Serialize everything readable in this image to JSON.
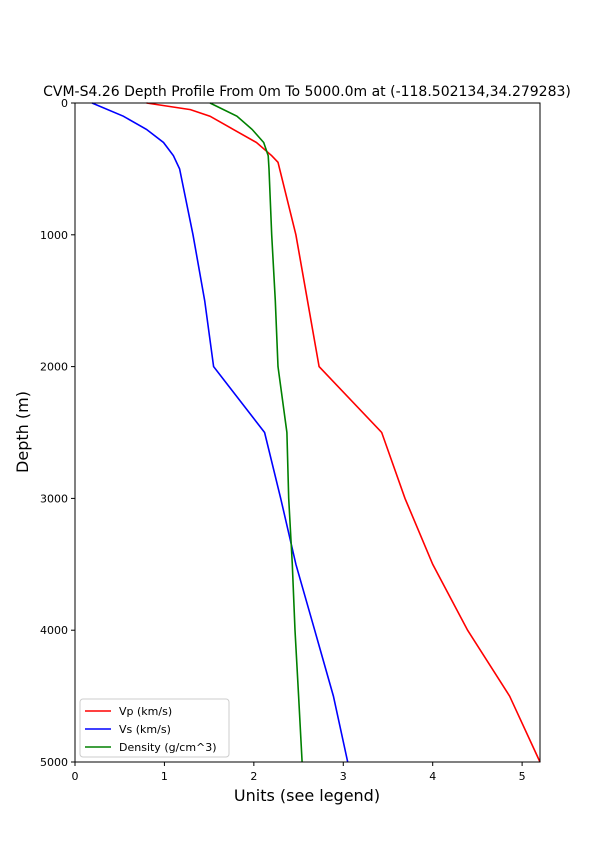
{
  "chart_data": {
    "type": "line",
    "title": "CVM-S4.26 Depth Profile From 0m To 5000.0m at (-118.502134,34.279283)",
    "xlabel": "Units (see legend)",
    "ylabel": "Depth (m)",
    "xlim": [
      0,
      5.2
    ],
    "ylim": [
      5000,
      0
    ],
    "y_inverted": true,
    "grid": false,
    "legend_placement": "lower-left",
    "xticks": [
      0,
      1,
      2,
      3,
      4,
      5
    ],
    "yticks": [
      0,
      1000,
      2000,
      3000,
      4000,
      5000
    ],
    "series": [
      {
        "name": "Vp (km/s)",
        "color": "#ff0000",
        "depth": [
          0,
          50,
          100,
          200,
          300,
          400,
          450,
          1000,
          1500,
          2000,
          2500,
          3000,
          3500,
          4000,
          4500,
          5000
        ],
        "values": [
          0.8,
          1.29,
          1.51,
          1.77,
          2.03,
          2.2,
          2.27,
          2.47,
          2.6,
          2.73,
          3.43,
          3.69,
          4.0,
          4.39,
          4.86,
          5.2
        ]
      },
      {
        "name": "Vs (km/s)",
        "color": "#0000ff",
        "depth": [
          0,
          100,
          200,
          300,
          400,
          500,
          1000,
          1500,
          2000,
          2500,
          3000,
          3500,
          4000,
          4500,
          5000
        ],
        "values": [
          0.19,
          0.54,
          0.8,
          0.99,
          1.1,
          1.17,
          1.32,
          1.45,
          1.55,
          2.12,
          2.3,
          2.47,
          2.68,
          2.89,
          3.05
        ]
      },
      {
        "name": "Density (g/cm^3)",
        "color": "#008000",
        "depth": [
          0,
          100,
          200,
          300,
          400,
          500,
          1000,
          1500,
          2000,
          2500,
          3000,
          3500,
          4000,
          4500,
          5000
        ],
        "values": [
          1.51,
          1.81,
          1.98,
          2.11,
          2.16,
          2.17,
          2.2,
          2.24,
          2.27,
          2.37,
          2.39,
          2.43,
          2.46,
          2.5,
          2.54
        ]
      }
    ]
  }
}
